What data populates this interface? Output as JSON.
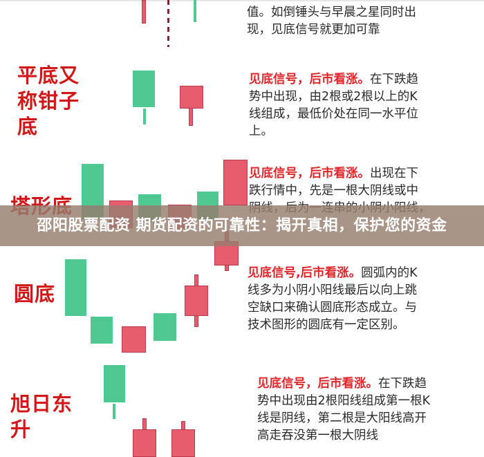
{
  "banner": {
    "title": "邵阳股票配资 期货配资的可靠性：揭开真相，保护您的资金"
  },
  "colors": {
    "label_red": "#d01818",
    "highlight_red": "#e0262b",
    "bull_red": "#e85d6e",
    "bear_green": "#4fc892"
  },
  "sections": [
    {
      "label_lines": [],
      "highlight": "",
      "lines": [
        "值。如倒锤头与早晨之星同时出",
        "现，见底信号就更加可靠"
      ]
    },
    {
      "label_lines": [
        "平底又",
        "称钳子",
        "底"
      ],
      "highlight": "见底信号，后市看涨。",
      "lines": [
        "在下跌趋",
        "势中出现，由2根或2根以上的K",
        "线组成，最低价处在同一水平位",
        "上。"
      ]
    },
    {
      "label_lines": [
        "塔形底"
      ],
      "highlight": "见底信号，后市看涨。",
      "lines": [
        "出现在下",
        "跌行情中，先是一根大阴线或中",
        "阴线，后为一连串的小阴小阳线，"
      ]
    },
    {
      "label_lines": [
        "圆底"
      ],
      "highlight": "见底信号,后市看涨。",
      "lines": [
        "圆弧内的K",
        "线多为小阴小阳线最后以向上跳",
        "空缺口来确认圆底形态成立。与",
        "技术图形的圆底有一定区别。"
      ]
    },
    {
      "label_lines": [
        "旭日东",
        "升"
      ],
      "highlight": "见底信号，后市看涨。",
      "lines": [
        "在下跌趋",
        "势中出现由2根阳线组成第一根K",
        "线是阴线，第二根是大阳线高开",
        "高走吞没第一根大阴线"
      ]
    }
  ]
}
